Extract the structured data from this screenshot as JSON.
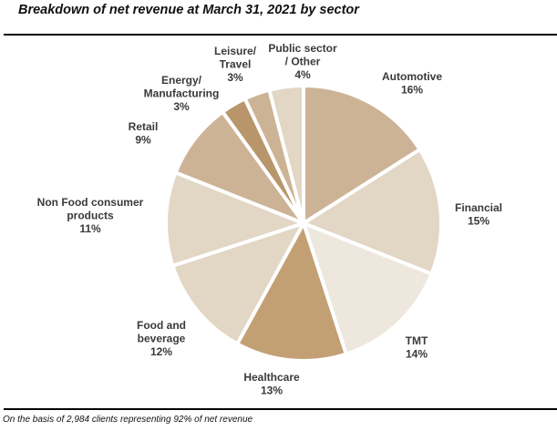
{
  "chart_data": {
    "type": "pie",
    "title": "Breakdown of net revenue at March 31, 2021 by sector",
    "footnote": "On the basis of 2,984 clients representing 92% of net revenue",
    "start": "12 o'clock",
    "direction": "clockwise",
    "unit": "%",
    "slices": [
      {
        "name": "Automotive",
        "label_lines": [
          "Automotive"
        ],
        "value": 16,
        "display": "16%",
        "color": "#cdb395"
      },
      {
        "name": "Financial",
        "label_lines": [
          "Financial"
        ],
        "value": 15,
        "display": "15%",
        "color": "#e2d6c4"
      },
      {
        "name": "TMT",
        "label_lines": [
          "TMT"
        ],
        "value": 14,
        "display": "14%",
        "color": "#eee7dd"
      },
      {
        "name": "Healthcare",
        "label_lines": [
          "Healthcare"
        ],
        "value": 13,
        "display": "13%",
        "color": "#c2a074"
      },
      {
        "name": "Food and beverage",
        "label_lines": [
          "Food and",
          "beverage"
        ],
        "value": 12,
        "display": "12%",
        "color": "#e2d6c4"
      },
      {
        "name": "Non Food consumer products",
        "label_lines": [
          "Non Food consumer",
          "products"
        ],
        "value": 11,
        "display": "11%",
        "color": "#e2d6c4"
      },
      {
        "name": "Retail",
        "label_lines": [
          "Retail"
        ],
        "value": 9,
        "display": "9%",
        "color": "#cdb395"
      },
      {
        "name": "Energy/ Manufacturing",
        "label_lines": [
          "Energy/",
          "Manufacturing"
        ],
        "value": 3,
        "display": "3%",
        "color": "#b8956a"
      },
      {
        "name": "Leisure/ Travel",
        "label_lines": [
          "Leisure/",
          "Travel"
        ],
        "value": 3,
        "display": "3%",
        "color": "#cdb395"
      },
      {
        "name": "Public sector / Other",
        "label_lines": [
          "Public sector",
          "/ Other"
        ],
        "value": 4,
        "display": "4%",
        "color": "#e2d6c4"
      }
    ]
  }
}
